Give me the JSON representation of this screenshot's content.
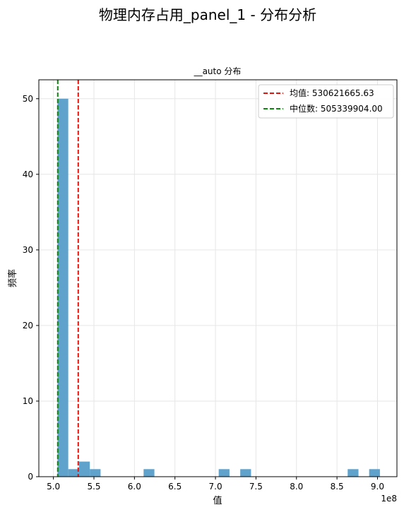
{
  "chart_data": {
    "type": "histogram",
    "title": "物理内存占用_panel_1 - 分布分析",
    "subtitle": "__auto 分布",
    "xlabel": "值",
    "ylabel": "频率",
    "x_offset_label": "1e8",
    "xlim": [
      4.82,
      9.24
    ],
    "ylim": [
      0,
      52.5
    ],
    "x_ticks": [
      5.0,
      5.5,
      6.0,
      6.5,
      7.0,
      7.5,
      8.0,
      8.5,
      9.0
    ],
    "x_tick_labels": [
      "5.0",
      "5.5",
      "6.0",
      "6.5",
      "7.0",
      "7.5",
      "8.0",
      "8.5",
      "9.0"
    ],
    "y_ticks": [
      0,
      10,
      20,
      30,
      40,
      50
    ],
    "y_tick_labels": [
      "0",
      "10",
      "20",
      "30",
      "40",
      "50"
    ],
    "grid": true,
    "legend_position": "top-right",
    "bar_color": "#5fa2cc",
    "bin_width": 0.133,
    "bins": [
      {
        "x0": 5.05,
        "count": 50
      },
      {
        "x0": 5.183,
        "count": 1
      },
      {
        "x0": 5.316,
        "count": 2
      },
      {
        "x0": 5.449,
        "count": 1
      },
      {
        "x0": 6.113,
        "count": 1
      },
      {
        "x0": 7.04,
        "count": 1
      },
      {
        "x0": 7.306,
        "count": 1
      },
      {
        "x0": 8.632,
        "count": 1
      },
      {
        "x0": 8.897,
        "count": 1
      }
    ],
    "reference_lines": [
      {
        "label": "均值: 530621665.63",
        "x": 5.3062,
        "color": "#e3120b",
        "style": "dashed"
      },
      {
        "label": "中位数: 505339904.00",
        "x": 5.0534,
        "color": "#0a8a0a",
        "style": "dashed"
      }
    ]
  }
}
